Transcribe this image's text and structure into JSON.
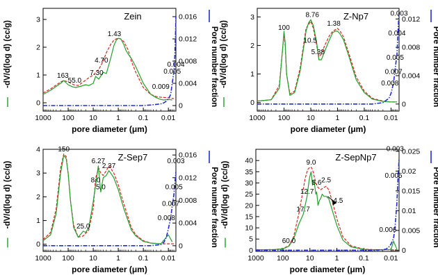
{
  "figure": {
    "x_axis_label": "pore diameter (μm)",
    "left_axis_label": "-dV/d(log d) (cc/g)",
    "right_axis_label": "Pore number fraction",
    "colors": {
      "volume_red": "#e0201a",
      "volume_green": "#22a02a",
      "fraction_blue": "#1f2bd8",
      "axes": "#000000"
    }
  },
  "chart_data": [
    {
      "type": "line",
      "title": "Zein",
      "x_scale": "log-reversed",
      "xlim": [
        1000,
        0.005
      ],
      "x_ticks": [
        1000,
        100,
        10,
        1,
        0.1,
        0.01
      ],
      "x_tick_labels": [
        "1000",
        "100",
        "10",
        "1",
        "0.1",
        "0.01"
      ],
      "ylim_left": [
        -0.3,
        3.4
      ],
      "y_ticks_left": [
        0,
        1,
        2,
        3
      ],
      "y_tick_labels_left": [
        "0",
        "1",
        "2",
        "3"
      ],
      "ylim_right": [
        -0.001,
        0.0175
      ],
      "y_ticks_right": [
        0,
        0.004,
        0.008,
        0.012,
        0.016
      ],
      "y_tick_labels_right": [
        "0",
        "0.004",
        "0.008",
        "0.012",
        "0.016"
      ],
      "series": [
        {
          "axis": "left",
          "color": "#e0201a",
          "style": "dashed",
          "x": [
            1000,
            500,
            200,
            150,
            100,
            60,
            40,
            25,
            15,
            10,
            6,
            4,
            3,
            2,
            1.5,
            1.2,
            1,
            0.8,
            0.6,
            0.4,
            0.3,
            0.2,
            0.1,
            0.05,
            0.03,
            0.02,
            0.01,
            0.006
          ],
          "y": [
            0.35,
            0.5,
            0.75,
            0.8,
            0.75,
            0.65,
            0.62,
            0.75,
            0.9,
            1.0,
            1.2,
            1.5,
            1.8,
            2.1,
            2.25,
            2.3,
            2.32,
            2.3,
            2.2,
            1.9,
            1.5,
            1.1,
            0.55,
            0.3,
            0.22,
            0.2,
            0.18,
            0.15
          ]
        },
        {
          "axis": "left",
          "color": "#22a02a",
          "style": "solid",
          "x": [
            1000,
            500,
            200,
            150,
            100,
            70,
            50,
            30,
            20,
            15,
            10,
            8,
            6,
            4,
            3,
            2,
            1.5,
            1.2,
            1,
            0.8,
            0.6,
            0.5,
            0.4,
            0.3,
            0.2,
            0.1,
            0.05,
            0.03,
            0.02,
            0.015,
            0.01,
            0.007
          ],
          "y": [
            0.3,
            0.45,
            0.7,
            0.8,
            0.65,
            0.58,
            0.55,
            0.6,
            0.65,
            0.62,
            0.7,
            0.95,
            0.85,
            1.1,
            1.05,
            1.6,
            2.05,
            2.25,
            2.32,
            2.3,
            2.1,
            1.9,
            1.75,
            1.6,
            1.3,
            0.7,
            0.3,
            0.18,
            0.12,
            0.1,
            0.12,
            0.1
          ]
        },
        {
          "axis": "right",
          "color": "#1f2bd8",
          "style": "dashdot",
          "x": [
            1000,
            0.1,
            0.05,
            0.02,
            0.015,
            0.012,
            0.01,
            0.008,
            0.007,
            0.006,
            0.0055,
            0.0052,
            0.005
          ],
          "y": [
            0,
            0,
            0.0001,
            0.0003,
            0.0005,
            0.0008,
            0.0012,
            0.002,
            0.004,
            0.006,
            0.009,
            0.013,
            0.016
          ]
        }
      ],
      "annotations": [
        {
          "text": "163",
          "x": 163,
          "y": 0.8
        },
        {
          "text": "55.0",
          "x": 55,
          "y": 0.62
        },
        {
          "text": "7.30",
          "x": 7.3,
          "y": 0.9
        },
        {
          "text": "4.70",
          "x": 4.7,
          "y": 1.35
        },
        {
          "text": "1.43",
          "x": 1.43,
          "y": 2.3
        },
        {
          "text": "0.004",
          "x": 0.005,
          "y": 1.2
        },
        {
          "text": "0.005",
          "x": 0.007,
          "y": 0.95
        },
        {
          "text": "0.009",
          "x": 0.02,
          "y": 0.4
        }
      ]
    },
    {
      "type": "line",
      "title": "Z-Np7",
      "x_scale": "log-reversed",
      "xlim": [
        1000,
        0.005
      ],
      "x_ticks": [
        1000,
        100,
        10,
        1,
        0.1,
        0.01
      ],
      "x_tick_labels": [
        "1000",
        "100",
        "10",
        "1",
        "0.1",
        "0.01"
      ],
      "ylim_left": [
        -0.3,
        3.3
      ],
      "y_ticks_left": [
        0,
        1,
        2,
        3
      ],
      "y_tick_labels_left": [
        "0",
        "1",
        "2",
        "3"
      ],
      "ylim_right": [
        -0.001,
        0.0135
      ],
      "y_ticks_right": [
        0,
        0.004,
        0.008,
        0.012
      ],
      "y_tick_labels_right": [
        "0",
        "0.004",
        "0.008",
        "0.012"
      ],
      "series": [
        {
          "axis": "left",
          "color": "#e0201a",
          "style": "dashed",
          "x": [
            1000,
            300,
            150,
            110,
            100,
            90,
            80,
            60,
            40,
            25,
            15,
            10,
            8,
            6,
            5,
            4,
            3,
            2,
            1.5,
            1.2,
            1,
            0.8,
            0.6,
            0.4,
            0.2,
            0.1,
            0.05,
            0.02,
            0.01,
            0.006
          ],
          "y": [
            0.05,
            0.1,
            0.6,
            2.0,
            2.4,
            2.0,
            1.0,
            0.3,
            0.4,
            1.2,
            2.6,
            2.85,
            2.6,
            2.0,
            1.6,
            1.7,
            2.0,
            2.35,
            2.5,
            2.55,
            2.6,
            2.5,
            2.3,
            1.8,
            0.9,
            0.4,
            0.15,
            0.05,
            0.02,
            0.02
          ]
        },
        {
          "axis": "left",
          "color": "#22a02a",
          "style": "solid",
          "x": [
            1000,
            300,
            150,
            110,
            100,
            90,
            80,
            60,
            40,
            25,
            15,
            12,
            10,
            8,
            6,
            5,
            4,
            3,
            2,
            1.5,
            1.2,
            1,
            0.8,
            0.6,
            0.4,
            0.2,
            0.1,
            0.05,
            0.02,
            0.01,
            0.006
          ],
          "y": [
            0.05,
            0.1,
            0.5,
            2.0,
            2.5,
            2.1,
            1.0,
            0.25,
            0.35,
            1.1,
            2.5,
            2.8,
            2.9,
            2.7,
            2.1,
            1.5,
            1.5,
            1.8,
            2.2,
            2.45,
            2.5,
            2.5,
            2.4,
            2.2,
            1.7,
            0.8,
            0.35,
            0.12,
            0.04,
            0.02,
            0.02
          ]
        },
        {
          "axis": "right",
          "color": "#1f2bd8",
          "style": "dashdot",
          "x": [
            1000,
            0.05,
            0.02,
            0.012,
            0.01,
            0.008,
            0.007,
            0.006,
            0.0055,
            0.005
          ],
          "y": [
            0,
            0,
            0.0002,
            0.0008,
            0.0015,
            0.003,
            0.005,
            0.007,
            0.01,
            0.013
          ]
        }
      ],
      "annotations": [
        {
          "text": "100",
          "x": 100,
          "y": 2.45
        },
        {
          "text": "10.5",
          "x": 10.5,
          "y": 2.0
        },
        {
          "text": "8.76",
          "x": 8.76,
          "y": 2.9
        },
        {
          "text": "5.38",
          "x": 5.38,
          "y": 1.6
        },
        {
          "text": "1.38",
          "x": 1.38,
          "y": 2.6
        },
        {
          "text": "0.003",
          "x": 0.005,
          "y": 2.95
        },
        {
          "text": "0.004",
          "x": 0.006,
          "y": 2.25
        },
        {
          "text": "0.005",
          "x": 0.007,
          "y": 1.4
        },
        {
          "text": "0.007",
          "x": 0.008,
          "y": 0.9
        },
        {
          "text": "0.008",
          "x": 0.011,
          "y": 0.5
        }
      ]
    },
    {
      "type": "line",
      "title": "Z-Sep7",
      "x_scale": "log-reversed",
      "xlim": [
        1000,
        0.005
      ],
      "x_ticks": [
        1000,
        100,
        10,
        1,
        0.1,
        0.01
      ],
      "x_tick_labels": [
        "1000",
        "100",
        "10",
        "1",
        "0.1",
        "0.01"
      ],
      "ylim_left": [
        -0.3,
        4.0
      ],
      "y_ticks_left": [
        0,
        1,
        2,
        3,
        4
      ],
      "y_tick_labels_left": [
        "0",
        "1",
        "2",
        "3",
        "4"
      ],
      "ylim_right": [
        -0.001,
        0.017
      ],
      "y_ticks_right": [
        0,
        0.004,
        0.008,
        0.012,
        0.016
      ],
      "y_tick_labels_right": [
        "0",
        "0.004",
        "0.008",
        "0.012",
        "0.016"
      ],
      "series": [
        {
          "axis": "left",
          "color": "#e0201a",
          "style": "dashed",
          "x": [
            1000,
            500,
            300,
            200,
            150,
            120,
            100,
            80,
            60,
            40,
            25,
            15,
            10,
            8,
            6,
            5,
            4,
            3,
            2.37,
            2,
            1.5,
            1,
            0.6,
            0.3,
            0.2,
            0.1,
            0.05,
            0.02,
            0.01,
            0.006
          ],
          "y": [
            0.2,
            0.5,
            1.5,
            3.2,
            3.8,
            3.7,
            3.0,
            1.8,
            0.8,
            0.3,
            0.35,
            0.6,
            1.5,
            2.8,
            3.2,
            3.0,
            2.9,
            3.1,
            3.3,
            3.2,
            3.0,
            2.5,
            1.7,
            0.7,
            0.4,
            0.15,
            0.05,
            0.02,
            0.02,
            0.02
          ]
        },
        {
          "axis": "left",
          "color": "#22a02a",
          "style": "solid",
          "x": [
            1000,
            500,
            300,
            200,
            150,
            120,
            100,
            80,
            60,
            40,
            30,
            25,
            20,
            15,
            10,
            8,
            6.27,
            5,
            4,
            3,
            2.37,
            2,
            1.5,
            1,
            0.6,
            0.3,
            0.2,
            0.1,
            0.05,
            0.02,
            0.01,
            0.007
          ],
          "y": [
            0.15,
            0.4,
            1.3,
            3.0,
            3.75,
            3.6,
            3.0,
            1.8,
            0.7,
            0.3,
            0.45,
            0.55,
            0.5,
            0.7,
            1.8,
            2.5,
            3.3,
            2.2,
            2.8,
            2.9,
            3.1,
            3.0,
            2.8,
            2.3,
            1.5,
            0.6,
            0.35,
            0.12,
            0.05,
            0.02,
            0.4,
            0.1
          ]
        },
        {
          "axis": "right",
          "color": "#1f2bd8",
          "style": "dashdot",
          "x": [
            1000,
            0.05,
            0.02,
            0.015,
            0.012,
            0.01,
            0.008,
            0.007,
            0.006,
            0.0055,
            0.005
          ],
          "y": [
            0,
            0,
            0.0002,
            0.0006,
            0.0015,
            0.003,
            0.005,
            0.007,
            0.009,
            0.011,
            0.013
          ]
        }
      ],
      "annotations": [
        {
          "text": "150",
          "x": 150,
          "y": 3.8
        },
        {
          "text": "25.0",
          "x": 25,
          "y": 0.55
        },
        {
          "text": "8.0",
          "x": 8.0,
          "y": 2.5
        },
        {
          "text": "6.27",
          "x": 6.27,
          "y": 3.3
        },
        {
          "text": "5.0",
          "x": 5.0,
          "y": 2.2
        },
        {
          "text": "2.37",
          "x": 2.37,
          "y": 3.1
        },
        {
          "text": "0.003",
          "x": 0.005,
          "y": 3.3
        },
        {
          "text": "0.005",
          "x": 0.006,
          "y": 2.2
        },
        {
          "text": "0.007",
          "x": 0.008,
          "y": 1.5
        },
        {
          "text": "0.008",
          "x": 0.012,
          "y": 0.9
        }
      ]
    },
    {
      "type": "line",
      "title": "Z-SepNp7",
      "x_scale": "log-reversed",
      "xlim": [
        1000,
        0.005
      ],
      "x_ticks": [
        1000,
        100,
        10,
        1,
        0.1,
        0.01
      ],
      "x_tick_labels": [
        "1000",
        "100",
        "10",
        "1",
        "0.1",
        "0.01"
      ],
      "ylim_left": [
        -0.5,
        45
      ],
      "y_ticks_left": [
        0,
        5,
        10,
        15,
        20,
        25,
        30,
        35,
        40
      ],
      "y_tick_labels_left": [
        "0",
        "5",
        "10",
        "15",
        "20",
        "25",
        "30",
        "35",
        "40"
      ],
      "ylim_right": [
        -0.0003,
        0.0255
      ],
      "y_ticks_right": [
        0,
        0.005,
        0.01,
        0.015,
        0.02,
        0.025
      ],
      "y_tick_labels_right": [
        "0",
        "0.005",
        "0.01",
        "0.015",
        "0.02",
        "0.025"
      ],
      "series": [
        {
          "axis": "left",
          "color": "#e0201a",
          "style": "dashed",
          "x": [
            1000,
            200,
            100,
            60,
            40,
            25,
            15,
            12,
            10,
            9,
            8,
            6,
            5,
            4,
            3,
            2.5,
            2,
            1.5,
            1,
            0.6,
            0.3,
            0.1,
            0.05,
            0.02,
            0.01,
            0.006
          ],
          "y": [
            0.2,
            0.3,
            0.8,
            2,
            6,
            17,
            32,
            36,
            37,
            37,
            36,
            30,
            28,
            27,
            28,
            28.5,
            27,
            22,
            14,
            6,
            2,
            0.5,
            0.3,
            0.2,
            0.2,
            0.2
          ]
        },
        {
          "axis": "left",
          "color": "#22a02a",
          "style": "solid",
          "x": [
            1000,
            200,
            100,
            60,
            40,
            25,
            17.7,
            15,
            12.7,
            11,
            10,
            9,
            8,
            7,
            6,
            5.6,
            5,
            4.5,
            4,
            3.5,
            3,
            2.5,
            2,
            1.5,
            1,
            0.6,
            0.3,
            0.1,
            0.05,
            0.02,
            0.01,
            0.008,
            0.006
          ],
          "y": [
            0.2,
            0.3,
            0.6,
            1.8,
            5,
            12,
            16,
            20,
            24,
            30,
            33,
            35,
            29,
            31,
            25,
            26,
            20,
            22,
            23,
            25,
            24,
            24,
            23,
            18,
            11,
            4.5,
            1.5,
            0.4,
            0.2,
            0.2,
            0.3,
            4,
            0.5
          ]
        },
        {
          "axis": "right",
          "color": "#1f2bd8",
          "style": "dashdot",
          "x": [
            1000,
            0.05,
            0.02,
            0.015,
            0.012,
            0.01,
            0.008,
            0.007,
            0.006,
            0.0055,
            0.005
          ],
          "y": [
            0,
            0,
            0.0001,
            0.0003,
            0.0008,
            0.0015,
            0.003,
            0.006,
            0.012,
            0.018,
            0.023
          ]
        }
      ],
      "annotations": [
        {
          "text": "60.0",
          "x": 60,
          "y": 2
        },
        {
          "text": "17.7",
          "x": 17.7,
          "y": 16
        },
        {
          "text": "12.7",
          "x": 12.7,
          "y": 24
        },
        {
          "text": "9.0",
          "x": 9.0,
          "y": 37
        },
        {
          "text": "5.6",
          "x": 5.6,
          "y": 28
        },
        {
          "text": "2.5",
          "x": 2.5,
          "y": 29
        },
        {
          "text": "4.5",
          "x": 0.9,
          "y": 20
        },
        {
          "text": "0.003",
          "x": 0.007,
          "y": 43
        },
        {
          "text": "0.005",
          "x": 0.008,
          "y": 31
        },
        {
          "text": "0.006",
          "x": 0.013,
          "y": 7
        }
      ]
    }
  ]
}
